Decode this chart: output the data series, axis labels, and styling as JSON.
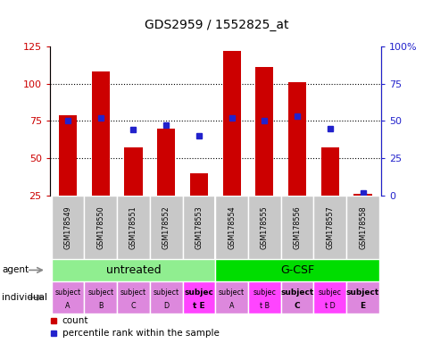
{
  "title": "GDS2959 / 1552825_at",
  "samples": [
    "GSM178549",
    "GSM178550",
    "GSM178551",
    "GSM178552",
    "GSM178553",
    "GSM178554",
    "GSM178555",
    "GSM178556",
    "GSM178557",
    "GSM178558"
  ],
  "counts": [
    79,
    108,
    57,
    70,
    40,
    122,
    111,
    101,
    57,
    26
  ],
  "percentile_ranks": [
    50,
    52,
    44,
    47,
    40,
    52,
    50,
    53,
    45,
    2
  ],
  "y_min": 25,
  "y_max": 125,
  "y_ticks": [
    25,
    50,
    75,
    100,
    125
  ],
  "y2_ticks": [
    0,
    25,
    50,
    75,
    100
  ],
  "y2_labels": [
    "0",
    "25",
    "50",
    "75",
    "100%"
  ],
  "agent_groups": [
    {
      "label": "untreated",
      "start": 0,
      "end": 5,
      "color": "#90EE90"
    },
    {
      "label": "G-CSF",
      "start": 5,
      "end": 10,
      "color": "#00DD00"
    }
  ],
  "individual_labels": [
    [
      "subject",
      "A"
    ],
    [
      "subject",
      "B"
    ],
    [
      "subject",
      "C"
    ],
    [
      "subject",
      "D"
    ],
    [
      "subjec",
      "t E"
    ],
    [
      "subject",
      "A"
    ],
    [
      "subjec",
      "t B"
    ],
    [
      "subject",
      "C"
    ],
    [
      "subjec",
      "t D"
    ],
    [
      "subject",
      "E"
    ]
  ],
  "individual_bold": [
    4,
    7,
    9
  ],
  "individual_colors": [
    "#DD88DD",
    "#DD88DD",
    "#DD88DD",
    "#DD88DD",
    "#FF44FF",
    "#DD88DD",
    "#FF44FF",
    "#DD88DD",
    "#FF44FF",
    "#DD88DD"
  ],
  "bar_color": "#CC0000",
  "dot_color": "#2222CC",
  "bar_width": 0.55,
  "tick_label_color_left": "#CC0000",
  "tick_label_color_right": "#2222CC",
  "legend_items": [
    {
      "label": "count",
      "color": "#CC0000"
    },
    {
      "label": "percentile rank within the sample",
      "color": "#2222CC"
    }
  ]
}
